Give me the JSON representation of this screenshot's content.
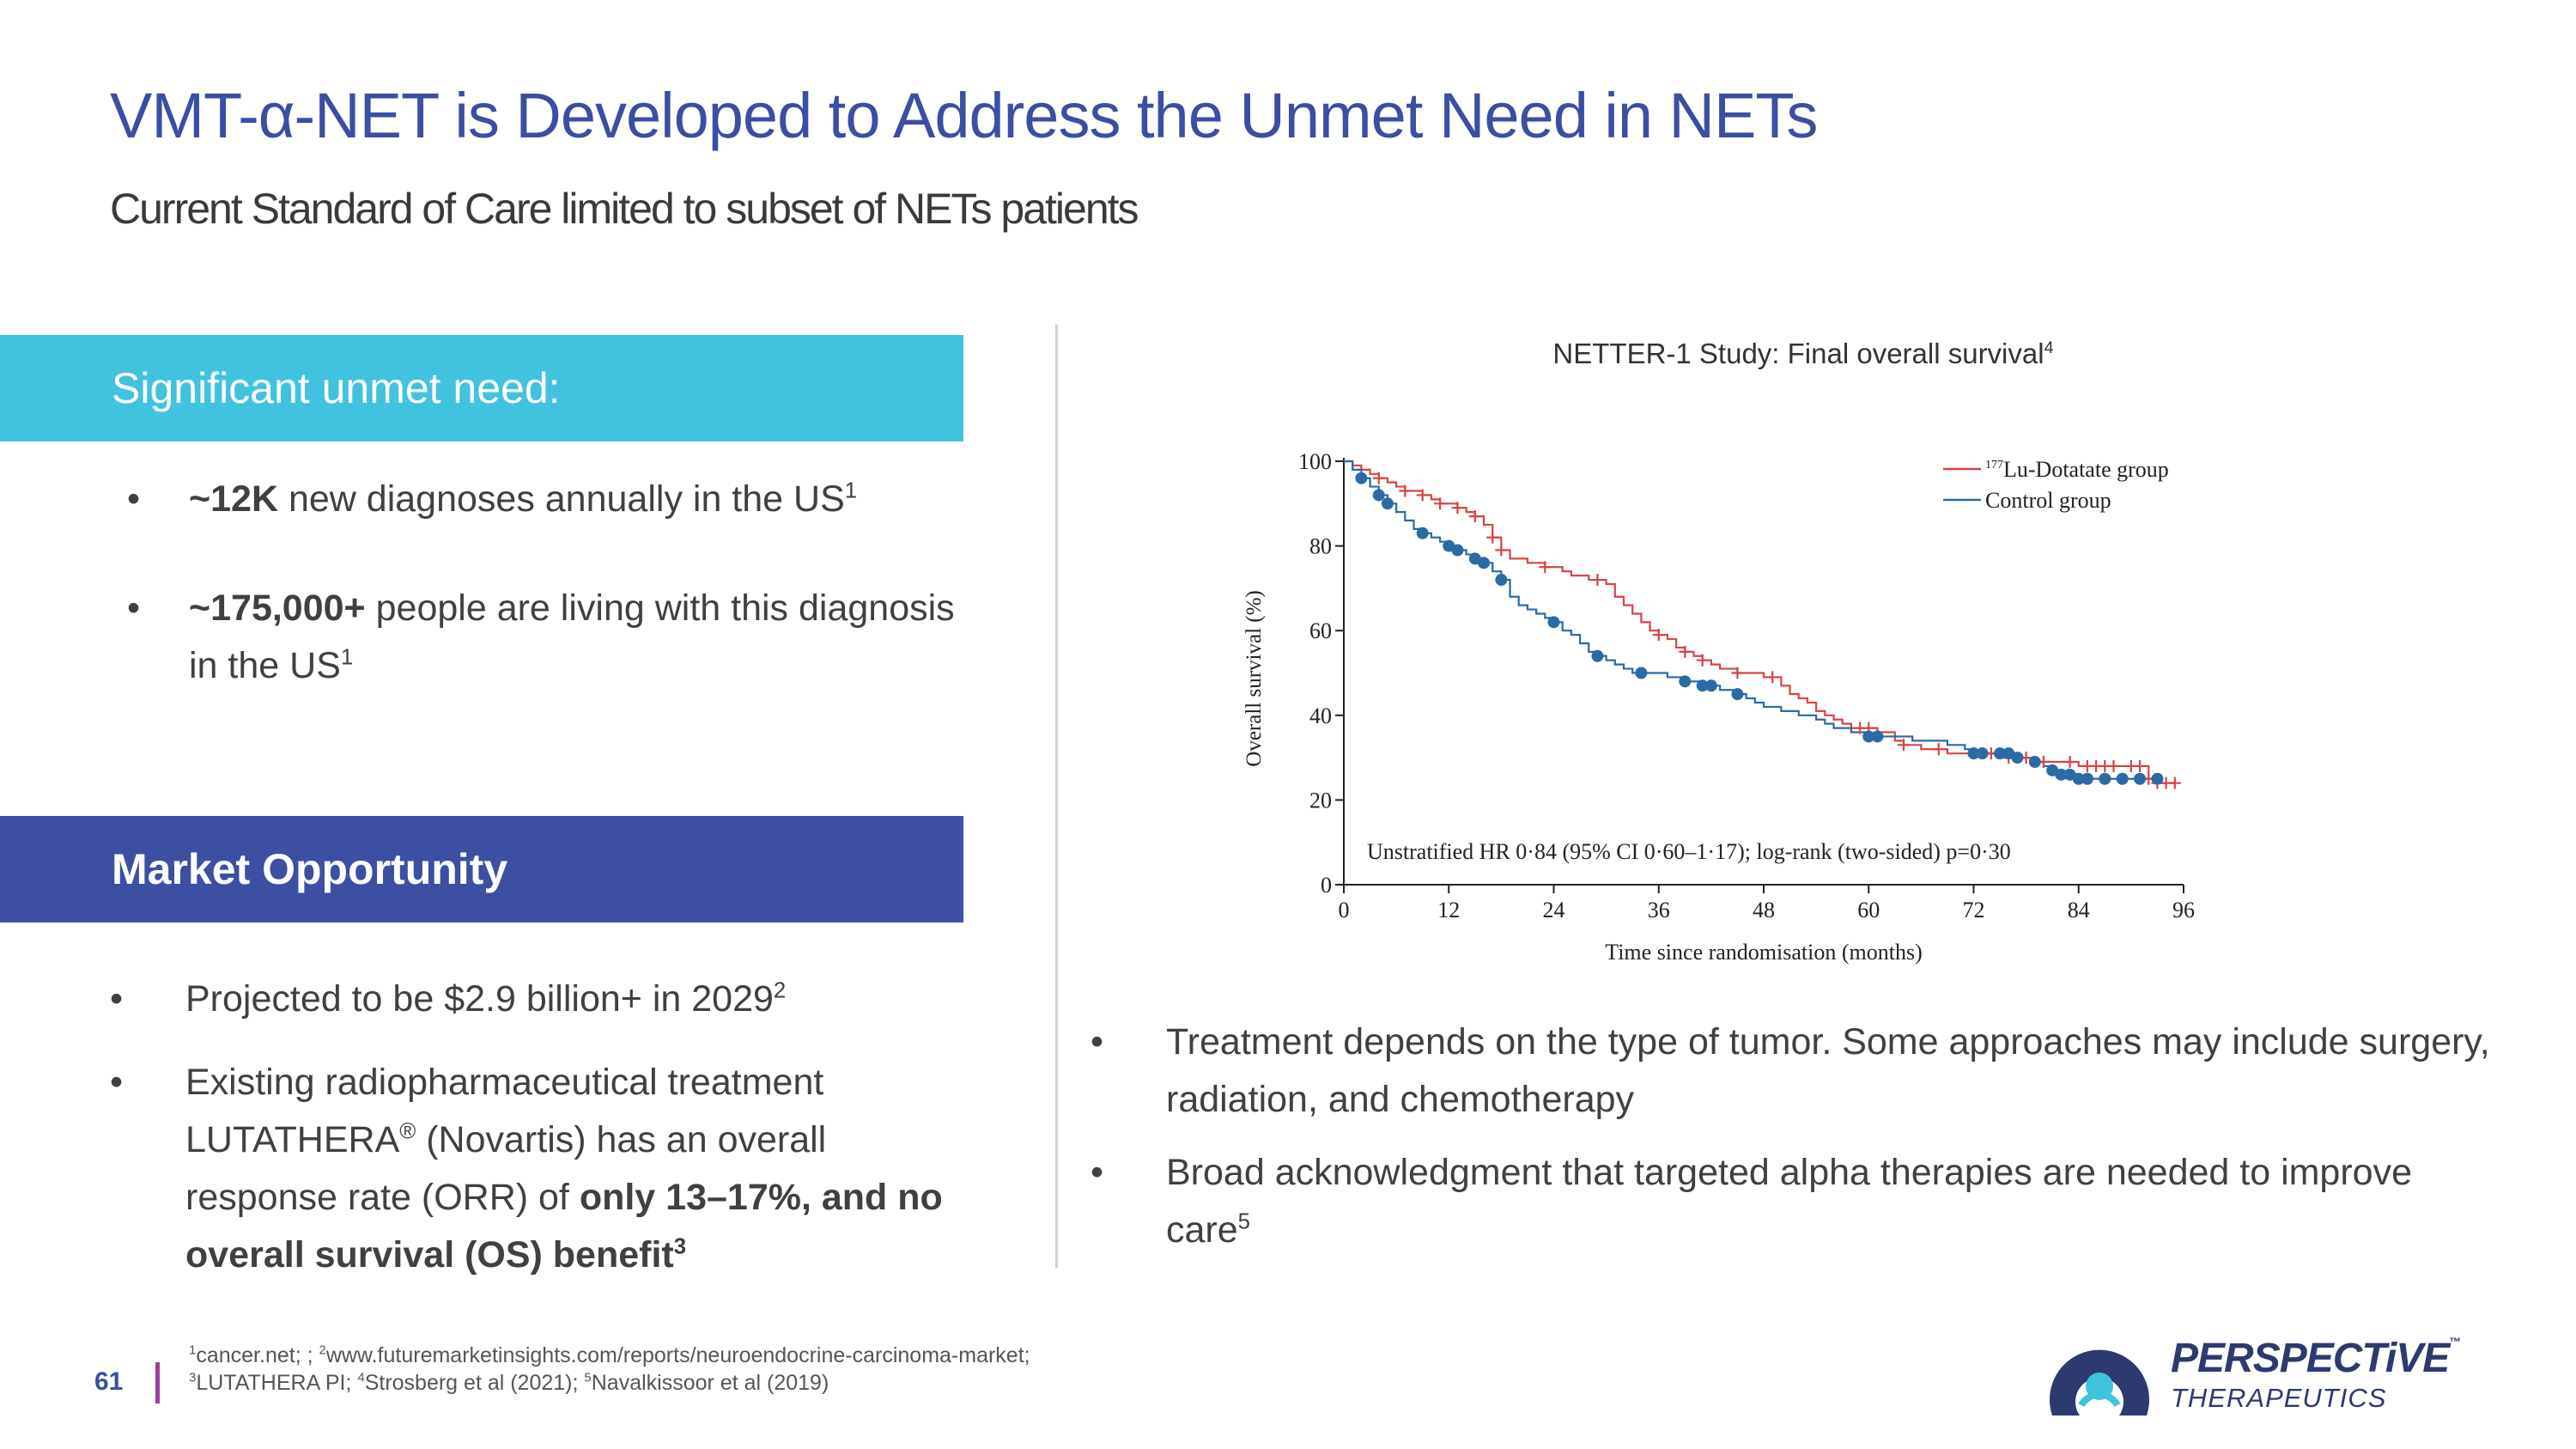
{
  "slide": {
    "title": "VMT-α-NET is Developed to Address the Unmet Need in NETs",
    "subtitle": "Current Standard of Care limited to subset of NETs patients",
    "page_number": "61"
  },
  "left": {
    "unmet_heading": "Significant unmet need:",
    "unmet_1": {
      "bold": "~12K",
      "text": " new diagnoses annually in the US",
      "sup": "1"
    },
    "unmet_2": {
      "bold": "~175,000+",
      "text": " people are living with this diagnosis in the US",
      "sup": "1"
    },
    "market_heading": "Market Opportunity",
    "market_1": {
      "text": "Projected to be $2.9 billion+ in 2029",
      "sup": "2"
    },
    "market_2": {
      "pre": "Existing radiopharmaceutical treatment LUTATHERA",
      "reg": "®",
      "mid": " (Novartis) has an overall response rate (ORR) of ",
      "bold": "only 13–17%, and no overall survival (OS) benefit",
      "sup": "3"
    }
  },
  "right": {
    "chart_heading": "NETTER-1 Study: Final overall survival",
    "chart_heading_sup": "4",
    "bullet_1": "Treatment depends on the type of tumor. Some approaches may include surgery, radiation, and chemotherapy",
    "bullet_2": "Broad acknowledgment that targeted alpha therapies are needed to improve care",
    "bullet_2_sup": "5"
  },
  "footer": {
    "line1_sup1": "1",
    "line1_a": "cancer.net; ; ",
    "line1_sup2": "2",
    "line1_b": "www.futuremarketinsights.com/reports/neuroendocrine-carcinoma-market;",
    "line2_sup3": "3",
    "line2_a": "LUTATHERA PI; ",
    "line2_sup4": "4",
    "line2_b": "Strosberg et al (2021); ",
    "line2_sup5": "5",
    "line2_c": "Navalkissoor et al (2019)"
  },
  "logo": {
    "name": "PERSPECTiVE",
    "tm": "™",
    "sub": "THERAPEUTICS"
  },
  "colors": {
    "title": "#3b4ea4",
    "cyan_banner": "#41c2de",
    "blue_banner": "#3c4fa2",
    "lutetium": "#d64545",
    "control": "#2b6aa5"
  },
  "chart_data": {
    "type": "line",
    "title": "NETTER-1 Study: Final overall survival",
    "xlabel": "Time since randomisation (months)",
    "ylabel": "Overall survival (%)",
    "xlim": [
      0,
      96
    ],
    "ylim": [
      0,
      100
    ],
    "x_ticks": [
      0,
      12,
      24,
      36,
      48,
      60,
      72,
      84,
      96
    ],
    "y_ticks": [
      0,
      20,
      40,
      60,
      80,
      100
    ],
    "annotation": "Unstratified HR 0·84 (95% CI 0·60–1·17); log-rank (two-sided) p=0·30",
    "legend_position": "top-right",
    "series": [
      {
        "name": "177Lu-Dotatate group",
        "legend_sup": "177",
        "legend_label": "Lu-Dotatate group",
        "color": "#d64545",
        "marker": "cross",
        "x": [
          0,
          1,
          2,
          3,
          4,
          5,
          6,
          7,
          8,
          9,
          10,
          11,
          12,
          13,
          14,
          15,
          16,
          17,
          18,
          19,
          20,
          21,
          22,
          23,
          24,
          25,
          26,
          27,
          28,
          29,
          30,
          31,
          32,
          33,
          34,
          35,
          36,
          37,
          38,
          39,
          40,
          41,
          42,
          43,
          44,
          45,
          46,
          47,
          48,
          49,
          50,
          51,
          52,
          53,
          54,
          55,
          56,
          57,
          58,
          59,
          60,
          61,
          62,
          63,
          64,
          65,
          66,
          67,
          68,
          69,
          70,
          71,
          72,
          73,
          74,
          75,
          76,
          77,
          78,
          79,
          80,
          82,
          84,
          86,
          88,
          90,
          92,
          93,
          95
        ],
        "y": [
          100,
          99,
          98,
          97,
          96,
          95,
          94,
          93,
          93,
          92,
          91,
          90,
          90,
          89,
          88,
          87,
          85,
          82,
          79,
          77,
          77,
          76,
          76,
          75,
          75,
          74,
          73,
          73,
          72,
          72,
          71,
          68,
          66,
          64,
          62,
          60,
          59,
          58,
          56,
          55,
          54,
          53,
          52,
          51,
          51,
          50,
          50,
          50,
          49,
          49,
          47,
          45,
          44,
          43,
          41,
          40,
          39,
          38,
          37,
          37,
          37,
          36,
          36,
          34,
          33,
          33,
          32,
          32,
          32,
          31,
          31,
          31,
          31,
          31,
          31,
          30,
          30,
          30,
          30,
          29,
          29,
          29,
          28,
          28,
          28,
          28,
          25,
          24,
          24
        ],
        "censor_x": [
          4,
          7,
          9,
          11,
          13,
          15,
          17,
          18,
          23,
          29,
          36,
          39,
          41,
          45,
          49,
          59,
          60,
          64,
          68,
          72,
          74,
          76,
          78,
          80,
          83,
          85,
          86,
          87,
          88,
          90,
          91,
          92,
          93,
          94,
          95
        ]
      },
      {
        "name": "Control group",
        "legend_label": "Control group",
        "color": "#2b6aa5",
        "marker": "dot",
        "x": [
          0,
          1,
          2,
          3,
          4,
          5,
          6,
          7,
          8,
          9,
          10,
          11,
          12,
          13,
          14,
          15,
          16,
          17,
          18,
          19,
          20,
          21,
          22,
          23,
          24,
          25,
          26,
          27,
          28,
          29,
          30,
          31,
          32,
          33,
          34,
          35,
          36,
          37,
          38,
          39,
          40,
          41,
          42,
          43,
          44,
          45,
          46,
          47,
          48,
          49,
          50,
          51,
          52,
          53,
          54,
          55,
          56,
          57,
          58,
          59,
          60,
          61,
          62,
          63,
          64,
          65,
          66,
          67,
          68,
          69,
          70,
          71,
          72,
          73,
          74,
          75,
          76,
          77,
          78,
          79,
          80,
          81,
          82,
          84,
          86,
          88,
          90,
          92,
          93
        ],
        "y": [
          100,
          98,
          96,
          94,
          92,
          90,
          88,
          86,
          84,
          83,
          82,
          81,
          80,
          79,
          78,
          77,
          76,
          74,
          72,
          68,
          66,
          65,
          64,
          63,
          62,
          60,
          59,
          57,
          55,
          54,
          53,
          52,
          51,
          50,
          50,
          50,
          50,
          49,
          49,
          48,
          48,
          47,
          47,
          46,
          46,
          45,
          44,
          43,
          42,
          42,
          41,
          41,
          40,
          40,
          39,
          38,
          37,
          37,
          36,
          36,
          35,
          35,
          35,
          35,
          35,
          34,
          34,
          34,
          34,
          33,
          33,
          32,
          31,
          31,
          31,
          31,
          31,
          30,
          30,
          29,
          28,
          27,
          26,
          25,
          25,
          25,
          25,
          25,
          25
        ],
        "censor_x": [
          2,
          4,
          5,
          9,
          12,
          13,
          15,
          16,
          18,
          24,
          29,
          34,
          39,
          41,
          42,
          45,
          60,
          61,
          72,
          73,
          75,
          76,
          77,
          79,
          81,
          82,
          83,
          84,
          85,
          87,
          89,
          91,
          93
        ]
      }
    ]
  }
}
